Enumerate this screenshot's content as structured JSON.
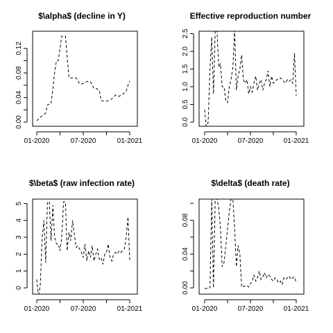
{
  "chart_data": [
    {
      "type": "line",
      "title": "$\\alpha$ (decline in Y)",
      "xlabel": "",
      "ylabel": "",
      "xlim": [
        2020.0,
        2021.0
      ],
      "ylim": [
        0,
        0.14
      ],
      "x_ticks": [
        {
          "value": 2020.0,
          "label": "01-2020"
        },
        {
          "value": 2020.5,
          "label": "07-2020"
        },
        {
          "value": 2021.0,
          "label": "01-2021"
        }
      ],
      "x_minor_ticks": [
        2020.25,
        2020.75
      ],
      "y_ticks": [
        {
          "value": 0.0,
          "label": "0.00"
        },
        {
          "value": 0.04,
          "label": "0.04"
        },
        {
          "value": 0.08,
          "label": "0.08"
        },
        {
          "value": 0.12,
          "label": "0.12"
        }
      ],
      "y_minor_ticks": [
        0.02,
        0.06,
        0.1
      ],
      "line_style": "dashed",
      "color": "#000000",
      "series": [
        {
          "x": [
            2020.0,
            2020.038,
            2020.077,
            2020.096,
            2020.115,
            2020.154,
            2020.173,
            2020.192,
            2020.212,
            2020.231,
            2020.269,
            2020.288,
            2020.308,
            2020.346,
            2020.365,
            2020.423,
            2020.462,
            2020.481,
            2020.519,
            2020.538,
            2020.577,
            2020.615,
            2020.635,
            2020.673,
            2020.692,
            2020.731,
            2020.75,
            2020.788,
            2020.827,
            2020.846,
            2020.885,
            2020.923,
            2020.962,
            2020.981,
            2021.0
          ],
          "y": [
            0.002,
            0.008,
            0.012,
            0.015,
            0.028,
            0.03,
            0.055,
            0.08,
            0.1,
            0.1,
            0.14,
            0.14,
            0.14,
            0.072,
            0.072,
            0.072,
            0.062,
            0.062,
            0.064,
            0.066,
            0.066,
            0.055,
            0.055,
            0.052,
            0.035,
            0.034,
            0.034,
            0.036,
            0.04,
            0.044,
            0.042,
            0.045,
            0.05,
            0.06,
            0.067
          ]
        }
      ]
    },
    {
      "type": "line",
      "title": "Effective reproduction number",
      "xlabel": "",
      "ylabel": "",
      "xlim": [
        2020.0,
        2021.0
      ],
      "ylim": [
        0,
        2.55
      ],
      "x_ticks": [
        {
          "value": 2020.0,
          "label": "01-2020"
        },
        {
          "value": 2020.5,
          "label": "07-2020"
        },
        {
          "value": 2021.0,
          "label": "01-2021"
        }
      ],
      "x_minor_ticks": [
        2020.25,
        2020.75
      ],
      "y_ticks": [
        {
          "value": 0.0,
          "label": "0.0"
        },
        {
          "value": 0.5,
          "label": "0.5"
        },
        {
          "value": 1.0,
          "label": "1.0"
        },
        {
          "value": 1.5,
          "label": "1.5"
        },
        {
          "value": 2.0,
          "label": "2.0"
        },
        {
          "value": 2.5,
          "label": "2.5"
        }
      ],
      "y_minor_ticks": [],
      "line_style": "dashed",
      "color": "#000000",
      "series": [
        {
          "x": [
            2020.0,
            2020.019,
            2020.038,
            2020.058,
            2020.077,
            2020.096,
            2020.115,
            2020.135,
            2020.154,
            2020.173,
            2020.192,
            2020.212,
            2020.231,
            2020.25,
            2020.269,
            2020.288,
            2020.308,
            2020.327,
            2020.346,
            2020.365,
            2020.385,
            2020.404,
            2020.423,
            2020.442,
            2020.462,
            2020.481,
            2020.5,
            2020.519,
            2020.538,
            2020.558,
            2020.577,
            2020.596,
            2020.615,
            2020.635,
            2020.654,
            2020.673,
            2020.692,
            2020.712,
            2020.731,
            2020.75,
            2020.769,
            2020.788,
            2020.808,
            2020.827,
            2020.846,
            2020.865,
            2020.885,
            2020.904,
            2020.923,
            2020.942,
            2020.962,
            2020.981,
            2021.0
          ],
          "y": [
            0.35,
            -0.3,
            0.0,
            1.5,
            2.4,
            0.8,
            2.6,
            2.6,
            1.55,
            1.65,
            1.0,
            1.0,
            0.6,
            0.55,
            1.0,
            1.2,
            1.55,
            2.6,
            0.9,
            1.3,
            1.5,
            1.9,
            1.2,
            1.1,
            1.2,
            0.8,
            1.0,
            0.85,
            1.1,
            1.3,
            0.9,
            1.1,
            1.2,
            0.9,
            1.1,
            1.2,
            1.45,
            1.0,
            1.3,
            1.1,
            1.15,
            1.2,
            1.2,
            1.25,
            1.2,
            1.15,
            1.1,
            1.2,
            1.15,
            1.2,
            1.1,
            1.95,
            0.75
          ]
        }
      ]
    },
    {
      "type": "line",
      "title": "$\\beta$ (raw infection rate)",
      "xlabel": "",
      "ylabel": "",
      "xlim": [
        2020.0,
        2021.0
      ],
      "ylim": [
        0,
        5.1
      ],
      "x_ticks": [
        {
          "value": 2020.0,
          "label": "01-2020"
        },
        {
          "value": 2020.5,
          "label": "07-2020"
        },
        {
          "value": 2021.0,
          "label": "01-2021"
        }
      ],
      "x_minor_ticks": [
        2020.25,
        2020.75
      ],
      "y_ticks": [
        {
          "value": 0,
          "label": "0"
        },
        {
          "value": 1,
          "label": "1"
        },
        {
          "value": 2,
          "label": "2"
        },
        {
          "value": 3,
          "label": "3"
        },
        {
          "value": 4,
          "label": "4"
        },
        {
          "value": 5,
          "label": "5"
        }
      ],
      "y_minor_ticks": [],
      "line_style": "dashed",
      "color": "#000000",
      "series": [
        {
          "x": [
            2020.0,
            2020.019,
            2020.038,
            2020.058,
            2020.077,
            2020.096,
            2020.115,
            2020.135,
            2020.154,
            2020.173,
            2020.192,
            2020.212,
            2020.231,
            2020.25,
            2020.269,
            2020.288,
            2020.308,
            2020.327,
            2020.346,
            2020.365,
            2020.385,
            2020.404,
            2020.423,
            2020.442,
            2020.462,
            2020.481,
            2020.5,
            2020.519,
            2020.538,
            2020.558,
            2020.577,
            2020.596,
            2020.615,
            2020.635,
            2020.654,
            2020.673,
            2020.692,
            2020.712,
            2020.731,
            2020.75,
            2020.769,
            2020.788,
            2020.808,
            2020.827,
            2020.846,
            2020.865,
            2020.885,
            2020.904,
            2020.923,
            2020.942,
            2020.962,
            2020.981,
            2021.0
          ],
          "y": [
            0.5,
            -0.6,
            0.2,
            3.0,
            4.0,
            1.5,
            5.1,
            5.1,
            2.8,
            4.9,
            3.0,
            2.6,
            2.6,
            2.2,
            3.0,
            5.1,
            5.1,
            2.2,
            3.3,
            2.8,
            4.0,
            3.2,
            2.4,
            2.5,
            2.3,
            2.1,
            1.8,
            2.6,
            1.6,
            2.2,
            1.8,
            2.5,
            1.6,
            2.0,
            2.3,
            1.7,
            1.8,
            1.4,
            2.0,
            2.1,
            2.6,
            1.8,
            1.6,
            2.0,
            2.1,
            2.0,
            2.2,
            2.1,
            2.2,
            2.3,
            3.0,
            4.2,
            1.6
          ]
        }
      ]
    },
    {
      "type": "line",
      "title": "$\\delta$ (death rate)",
      "xlabel": "",
      "ylabel": "",
      "xlim": [
        2020.0,
        2021.0
      ],
      "ylim": [
        0,
        0.105
      ],
      "x_ticks": [
        {
          "value": 2020.0,
          "label": "01-2020"
        },
        {
          "value": 2020.5,
          "label": "07-2020"
        },
        {
          "value": 2021.0,
          "label": "01-2021"
        }
      ],
      "x_minor_ticks": [
        2020.25,
        2020.75
      ],
      "y_ticks": [
        {
          "value": 0.0,
          "label": "0.00"
        },
        {
          "value": 0.04,
          "label": "0.04"
        },
        {
          "value": 0.08,
          "label": "0.08"
        }
      ],
      "y_minor_ticks": [
        0.02,
        0.06,
        0.1
      ],
      "line_style": "dashed",
      "color": "#000000",
      "series": [
        {
          "x": [
            2020.0,
            2020.038,
            2020.058,
            2020.077,
            2020.096,
            2020.115,
            2020.135,
            2020.154,
            2020.173,
            2020.192,
            2020.212,
            2020.231,
            2020.25,
            2020.269,
            2020.288,
            2020.308,
            2020.327,
            2020.346,
            2020.365,
            2020.385,
            2020.404,
            2020.423,
            2020.442,
            2020.462,
            2020.481,
            2020.5,
            2020.519,
            2020.538,
            2020.558,
            2020.577,
            2020.596,
            2020.615,
            2020.635,
            2020.654,
            2020.673,
            2020.692,
            2020.712,
            2020.731,
            2020.75,
            2020.769,
            2020.788,
            2020.808,
            2020.827,
            2020.846,
            2020.865,
            2020.885,
            2020.904,
            2020.923,
            2020.942,
            2020.962,
            2020.981,
            2021.0
          ],
          "y": [
            -0.001,
            0.0,
            0.0,
            0.105,
            0.0,
            0.105,
            0.105,
            0.095,
            0.07,
            0.025,
            0.03,
            0.05,
            0.07,
            0.09,
            0.105,
            0.105,
            0.07,
            0.025,
            0.05,
            0.04,
            0.001,
            0.002,
            0.002,
            0.003,
            0.001,
            0.005,
            0.008,
            0.015,
            0.008,
            0.012,
            0.02,
            0.01,
            0.013,
            0.018,
            0.012,
            0.016,
            0.014,
            0.01,
            0.008,
            0.012,
            0.01,
            0.006,
            0.008,
            0.004,
            0.012,
            0.01,
            0.012,
            0.014,
            0.01,
            0.012,
            0.013,
            0.006
          ]
        }
      ]
    }
  ]
}
